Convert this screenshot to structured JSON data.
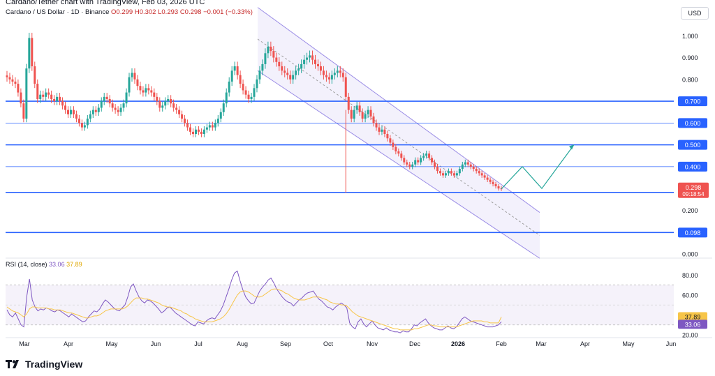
{
  "header": {
    "top_text": "Cardano/Tether chart with TradingView, Feb 03, 2026 UTC",
    "symbol": "Cardano / US Dollar · 1D · Binance",
    "open": "O0.299",
    "high": "H0.302",
    "low": "L0.293",
    "close": "C0.298",
    "change": "−0.001 (−0.33%)",
    "currency": "USD"
  },
  "rsi": {
    "label": "RSI (14, close)",
    "value_rsi": "33.06",
    "value_ma": "37.89"
  },
  "logo": {
    "text": "TradingView"
  },
  "colors": {
    "up": "#26a69a",
    "down": "#ef5350",
    "level": "#2962ff",
    "channel": "#9c8ee6",
    "rsi": "#7e57c2",
    "rsi_ma": "#f7c548",
    "projection": "#26a69a",
    "price_tag": "#ef5350"
  },
  "chart_data": [
    {
      "type": "candlestick",
      "title": "Cardano / US Dollar · 1D · Binance",
      "x_ticks": [
        "Mar",
        "Apr",
        "May",
        "Jun",
        "Jul",
        "Aug",
        "Sep",
        "Oct",
        "Nov",
        "Dec",
        "2026",
        "Feb",
        "Mar",
        "Apr",
        "May",
        "Jun"
      ],
      "y_ticks": [
        "1.000",
        "0.900",
        "0.800",
        "0.700",
        "0.600",
        "0.500",
        "0.400",
        "0.200",
        "0.000"
      ],
      "ylim": [
        0.0,
        1.1
      ],
      "grid": false,
      "horizontal_levels": [
        {
          "label": "0.700",
          "value": 0.7
        },
        {
          "label": "0.600",
          "value": 0.6
        },
        {
          "label": "0.500",
          "value": 0.5
        },
        {
          "label": "0.400",
          "value": 0.4
        },
        {
          "label": "0.282",
          "value": 0.282
        },
        {
          "label": "0.098",
          "value": 0.098
        }
      ],
      "current_price": {
        "label": "0.298",
        "countdown": "09:18:54"
      },
      "close_series": [
        0.81,
        0.8,
        0.79,
        0.78,
        0.74,
        0.69,
        0.62,
        0.85,
        0.99,
        0.86,
        0.78,
        0.71,
        0.73,
        0.72,
        0.74,
        0.73,
        0.71,
        0.7,
        0.72,
        0.7,
        0.68,
        0.66,
        0.64,
        0.66,
        0.64,
        0.62,
        0.6,
        0.58,
        0.59,
        0.62,
        0.64,
        0.66,
        0.65,
        0.67,
        0.7,
        0.72,
        0.71,
        0.69,
        0.67,
        0.66,
        0.65,
        0.67,
        0.69,
        0.74,
        0.81,
        0.83,
        0.8,
        0.77,
        0.75,
        0.74,
        0.76,
        0.75,
        0.74,
        0.72,
        0.7,
        0.67,
        0.68,
        0.7,
        0.71,
        0.69,
        0.67,
        0.66,
        0.64,
        0.62,
        0.6,
        0.58,
        0.56,
        0.55,
        0.57,
        0.56,
        0.55,
        0.57,
        0.58,
        0.59,
        0.58,
        0.6,
        0.62,
        0.65,
        0.69,
        0.74,
        0.79,
        0.84,
        0.86,
        0.82,
        0.78,
        0.75,
        0.73,
        0.71,
        0.72,
        0.76,
        0.8,
        0.84,
        0.87,
        0.92,
        0.95,
        0.93,
        0.9,
        0.88,
        0.86,
        0.84,
        0.83,
        0.82,
        0.8,
        0.82,
        0.84,
        0.85,
        0.87,
        0.89,
        0.9,
        0.91,
        0.89,
        0.87,
        0.86,
        0.84,
        0.82,
        0.81,
        0.8,
        0.82,
        0.83,
        0.84,
        0.83,
        0.81,
        0.72,
        0.66,
        0.62,
        0.66,
        0.68,
        0.65,
        0.62,
        0.64,
        0.66,
        0.63,
        0.6,
        0.58,
        0.56,
        0.57,
        0.55,
        0.53,
        0.51,
        0.49,
        0.47,
        0.46,
        0.44,
        0.42,
        0.41,
        0.4,
        0.41,
        0.43,
        0.42,
        0.44,
        0.45,
        0.46,
        0.44,
        0.42,
        0.4,
        0.38,
        0.37,
        0.36,
        0.37,
        0.38,
        0.37,
        0.36,
        0.37,
        0.39,
        0.41,
        0.42,
        0.41,
        0.4,
        0.39,
        0.38,
        0.37,
        0.36,
        0.35,
        0.34,
        0.33,
        0.32,
        0.31,
        0.3,
        0.298
      ],
      "channel": {
        "upper": [
          {
            "x": "Aug",
            "y": 1.13
          },
          {
            "x": "Feb",
            "y": 0.3
          }
        ],
        "lower": [
          {
            "x": "Aug",
            "y": 0.84
          },
          {
            "x": "Feb",
            "y": 0.02
          }
        ]
      },
      "projection": [
        0.298,
        0.4,
        0.3,
        0.5
      ]
    },
    {
      "type": "line",
      "title": "RSI (14, close)",
      "y_ticks": [
        "80.00",
        "60.00",
        "40.00",
        "20.00"
      ],
      "ylim": [
        20,
        90
      ],
      "band": [
        30,
        70
      ],
      "current_values": {
        "rsi": "33.06",
        "ma": "37.89"
      },
      "series": [
        {
          "values": [
            45,
            40,
            38,
            42,
            36,
            30,
            28,
            58,
            76,
            55,
            48,
            44,
            46,
            45,
            47,
            46,
            44,
            43,
            45,
            44,
            42,
            40,
            38,
            41,
            39,
            37,
            35,
            33,
            34,
            38,
            41,
            44,
            43,
            46,
            51,
            55,
            53,
            50,
            47,
            45,
            44,
            47,
            50,
            58,
            68,
            71,
            64,
            58,
            54,
            52,
            55,
            54,
            52,
            49,
            46,
            42,
            44,
            47,
            48,
            45,
            42,
            40,
            38,
            36,
            34,
            32,
            30,
            29,
            33,
            32,
            31,
            34,
            36,
            37,
            36,
            40,
            44,
            50,
            58,
            66,
            75,
            82,
            84,
            74,
            65,
            58,
            54,
            51,
            52,
            58,
            64,
            68,
            71,
            75,
            77,
            72,
            66,
            62,
            58,
            55,
            53,
            52,
            49,
            52,
            55,
            57,
            60,
            62,
            63,
            64,
            60,
            56,
            54,
            51,
            48,
            47,
            45,
            48,
            50,
            52,
            50,
            47,
            32,
            28,
            26,
            33,
            36,
            31,
            28,
            31,
            34,
            30,
            27,
            26,
            25,
            27,
            25,
            24,
            23,
            23,
            22,
            24,
            23,
            23,
            26,
            30,
            29,
            32,
            34,
            36,
            32,
            29,
            27,
            26,
            25,
            25,
            27,
            29,
            27,
            26,
            28,
            32,
            36,
            38,
            36,
            34,
            33,
            32,
            31,
            30,
            29,
            28,
            28,
            28,
            29,
            30,
            33.06
          ]
        },
        {
          "values": [
            48,
            46,
            44,
            43,
            42,
            40,
            38,
            41,
            46,
            48,
            48,
            47,
            47,
            47,
            47,
            46,
            46,
            45,
            45,
            45,
            44,
            43,
            42,
            42,
            41,
            40,
            39,
            38,
            37,
            37,
            38,
            39,
            39,
            40,
            42,
            44,
            45,
            46,
            46,
            46,
            46,
            46,
            47,
            49,
            52,
            55,
            57,
            57,
            57,
            56,
            56,
            55,
            54,
            53,
            52,
            50,
            49,
            48,
            48,
            47,
            46,
            45,
            44,
            42,
            41,
            39,
            38,
            36,
            35,
            34,
            33,
            33,
            33,
            33,
            34,
            35,
            36,
            38,
            41,
            45,
            50,
            55,
            60,
            63,
            64,
            64,
            63,
            61,
            59,
            58,
            58,
            59,
            61,
            63,
            65,
            66,
            66,
            65,
            64,
            62,
            61,
            59,
            57,
            56,
            55,
            55,
            55,
            56,
            57,
            58,
            58,
            58,
            57,
            56,
            55,
            53,
            52,
            51,
            51,
            50,
            50,
            49,
            46,
            43,
            41,
            39,
            38,
            37,
            36,
            35,
            34,
            33,
            32,
            31,
            30,
            29,
            28,
            27,
            26,
            26,
            25,
            25,
            25,
            25,
            25,
            26,
            26,
            27,
            28,
            29,
            30,
            30,
            29,
            29,
            28,
            28,
            28,
            28,
            28,
            28,
            28,
            29,
            30,
            31,
            32,
            33,
            34,
            34,
            34,
            34,
            33,
            33,
            32,
            32,
            32,
            32,
            37.89
          ]
        }
      ]
    }
  ]
}
